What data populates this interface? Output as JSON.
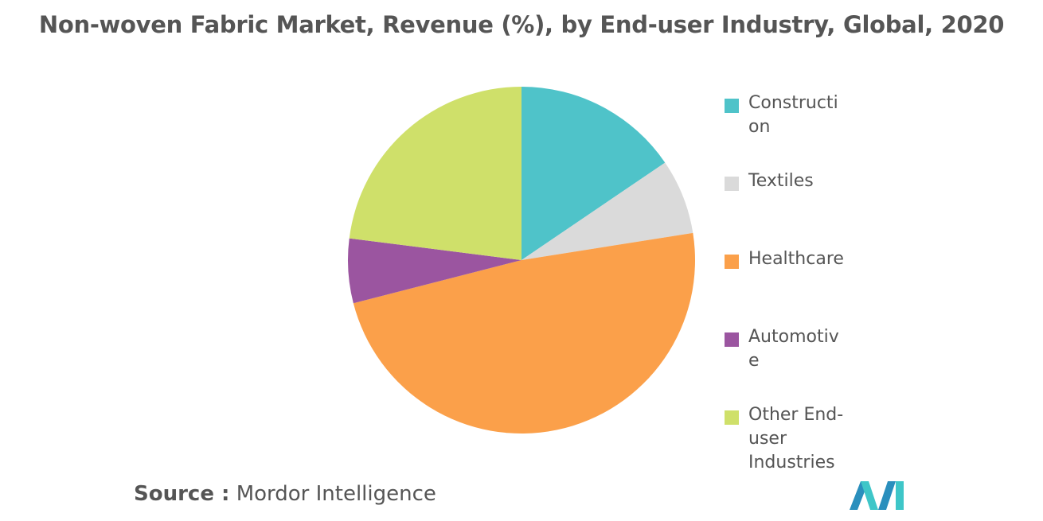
{
  "chart_data": {
    "type": "pie",
    "title": "Non-woven Fabric Market, Revenue (%), by End-user Industry, Global, 2020",
    "legend_placement": "right",
    "slices": [
      {
        "label": "Construction",
        "value": 15.5,
        "color": "#4fc3c9"
      },
      {
        "label": "Textiles",
        "value": 7.0,
        "color": "#dadada"
      },
      {
        "label": "Healthcare",
        "value": 48.5,
        "color": "#fba04a"
      },
      {
        "label": "Automotive",
        "value": 6.0,
        "color": "#9b55a0"
      },
      {
        "label": "Other End-user Industries",
        "value": 23.0,
        "color": "#cfe06a"
      }
    ]
  },
  "source": {
    "label": "Source :",
    "text": "Mordor Intelligence"
  },
  "logo": {
    "icon": "mordor-intelligence-logo",
    "colors": [
      "#2a8fbd",
      "#3ec6c8"
    ]
  }
}
